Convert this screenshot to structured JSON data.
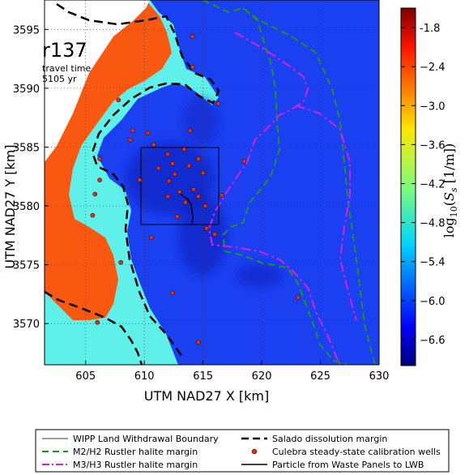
{
  "chart_data": {
    "type": "heatmap",
    "xlabel": "UTM NAD27 X [km]",
    "ylabel": "UTM NAD27 Y [km]",
    "xlim": [
      601.5,
      630
    ],
    "ylim": [
      3566.5,
      3597.5
    ],
    "xticks": [
      605,
      610,
      615,
      620,
      625,
      630
    ],
    "yticks": [
      3570,
      3575,
      3580,
      3585,
      3590,
      3595
    ],
    "grid": true,
    "annotation": {
      "title": "r137",
      "line1": "travel time",
      "line2": "5105 yr"
    },
    "colorbar": {
      "label": "log10(Ss [1/m])",
      "range": [
        -7.0,
        -1.5
      ],
      "ticks": [
        "-1.8",
        "−2.4",
        "−3.0",
        "−3.6",
        "−4.2",
        "−4.8",
        "−5.4",
        "−6.0",
        "−6.6"
      ],
      "tick_values": [
        -1.8,
        -2.4,
        -3.0,
        -3.6,
        -4.2,
        -4.8,
        -5.4,
        -6.0,
        -6.6
      ]
    },
    "field_levels": {
      "orange": -2.2,
      "cyan": -5.1,
      "blue": -6.3,
      "dark_blue": -6.7
    },
    "wells": [
      [
        607.8,
        3589.0
      ],
      [
        609.0,
        3586.4
      ],
      [
        610.3,
        3586.2
      ],
      [
        608.8,
        3585.6
      ],
      [
        606.2,
        3584.0
      ],
      [
        606.2,
        3582.2
      ],
      [
        605.8,
        3581.0
      ],
      [
        605.6,
        3579.2
      ],
      [
        609.6,
        3582.2
      ],
      [
        610.8,
        3585.2
      ],
      [
        611.2,
        3583.2
      ],
      [
        612.0,
        3584.4
      ],
      [
        612.4,
        3583.6
      ],
      [
        612.6,
        3582.7
      ],
      [
        613.0,
        3581.2
      ],
      [
        613.4,
        3584.8
      ],
      [
        613.8,
        3583.4
      ],
      [
        614.6,
        3584.0
      ],
      [
        612.0,
        3580.8
      ],
      [
        613.5,
        3580.3
      ],
      [
        614.2,
        3581.4
      ],
      [
        614.6,
        3580.8
      ],
      [
        615.2,
        3580.0
      ],
      [
        612.8,
        3579.1
      ],
      [
        615.3,
        3578.1
      ],
      [
        616.0,
        3577.6
      ],
      [
        610.6,
        3577.3
      ],
      [
        613.9,
        3586.4
      ],
      [
        614.1,
        3594.4
      ],
      [
        614.1,
        3591.8
      ],
      [
        616.3,
        3588.7
      ],
      [
        618.5,
        3583.8
      ],
      [
        612.4,
        3572.6
      ],
      [
        608.0,
        3575.2
      ],
      [
        606.0,
        3570.1
      ],
      [
        614.6,
        3568.4
      ],
      [
        623.1,
        3572.2
      ],
      [
        612.1,
        3582.1
      ],
      [
        615.0,
        3582.8
      ],
      [
        616.6,
        3580.9
      ]
    ]
  },
  "legend": {
    "items": [
      "WIPP Land Withdrawal Boundary",
      "M2/H2 Rustler halite margin",
      "M3/H3 Rustler halite margin",
      "Salado dissolution margin",
      "Culebra steady-state calibration wells",
      "Particle from Waste Panels to LWB"
    ]
  },
  "colors": {
    "blue": "#1a40f2",
    "dark_blue": "#1024c8",
    "cyan": "#5ff0ea",
    "orange": "#f85810",
    "well": "#e03010",
    "green": "#229222",
    "magenta": "#d821d8"
  }
}
